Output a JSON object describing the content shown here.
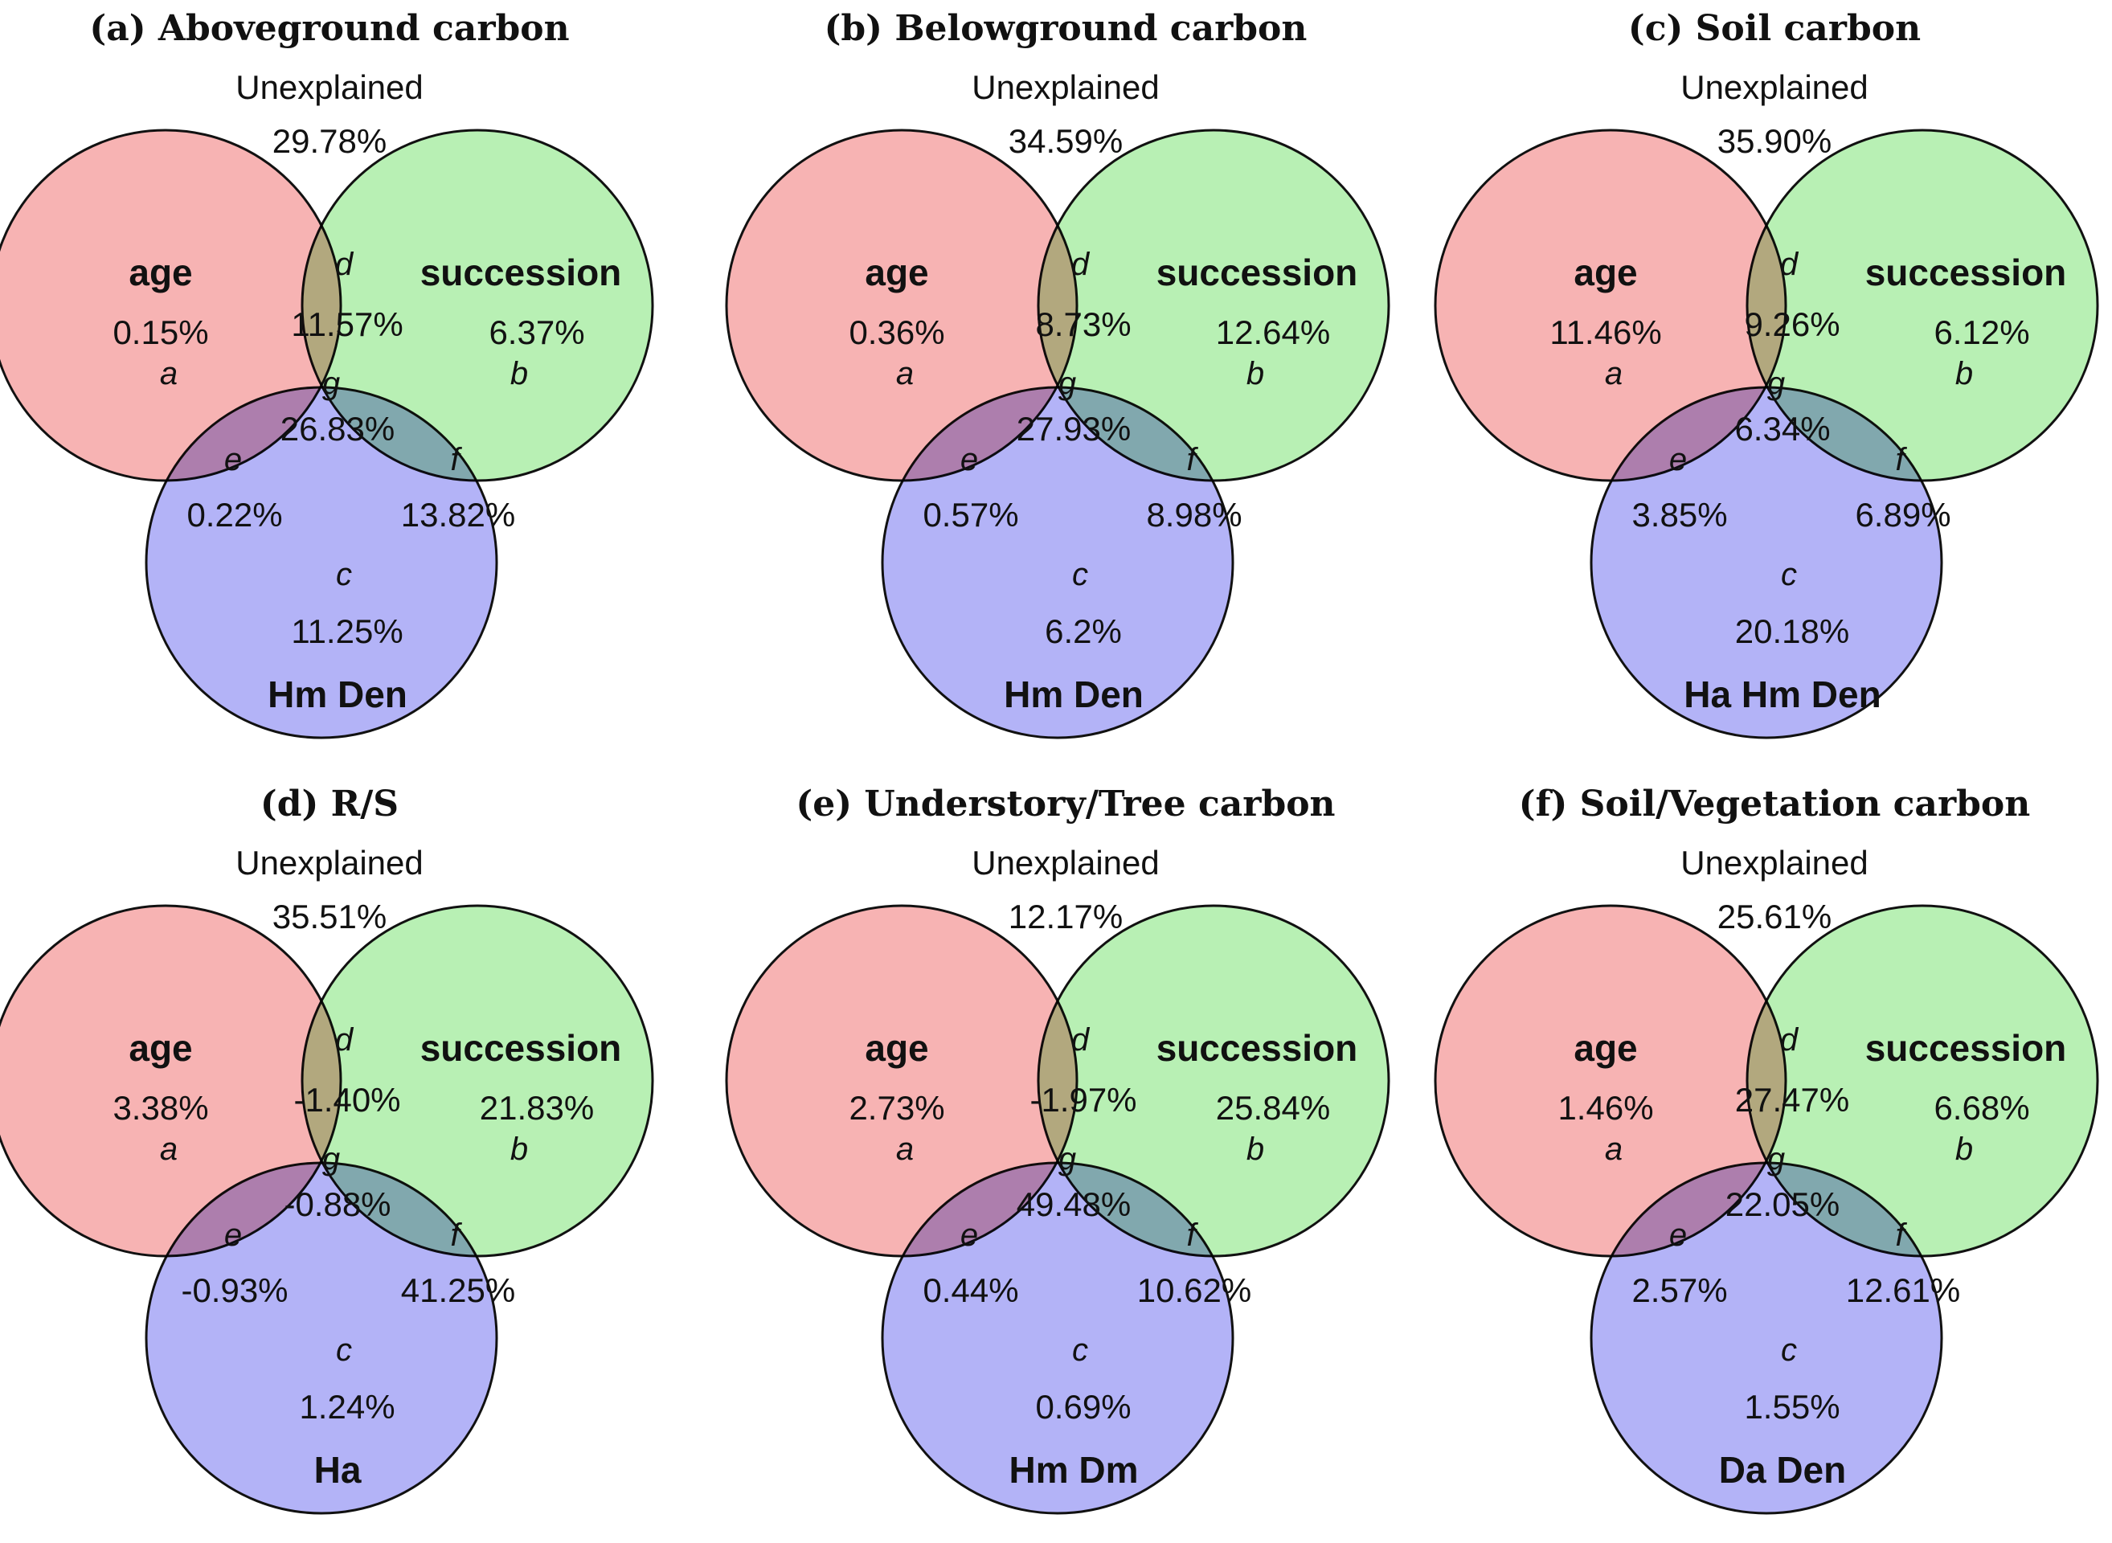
{
  "colors": {
    "age": "#f7b3b3",
    "succession": "#b8f0b4",
    "predictor": "#b3b3f7",
    "outline": "#111111"
  },
  "chart_data": [
    {
      "type": "venn",
      "title": "(a) Aboveground carbon",
      "unexplained_label": "Unexplained",
      "unexplained": "29.78%",
      "sets": [
        "age",
        "succession",
        "Hm Den"
      ],
      "regions": {
        "a": "0.15%",
        "b": "6.37%",
        "c": "11.25%",
        "d": "11.57%",
        "e": "0.22%",
        "f": "13.82%",
        "g": "26.83%"
      }
    },
    {
      "type": "venn",
      "title": "(b) Belowground carbon",
      "unexplained_label": "Unexplained",
      "unexplained": "34.59%",
      "sets": [
        "age",
        "succession",
        "Hm Den"
      ],
      "regions": {
        "a": "0.36%",
        "b": "12.64%",
        "c": "6.2%",
        "d": "8.73%",
        "e": "0.57%",
        "f": "8.98%",
        "g": "27.93%"
      }
    },
    {
      "type": "venn",
      "title": "(c) Soil carbon",
      "unexplained_label": "Unexplained",
      "unexplained": "35.90%",
      "sets": [
        "age",
        "succession",
        "Ha   Hm   Den"
      ],
      "regions": {
        "a": "11.46%",
        "b": "6.12%",
        "c": "20.18%",
        "d": "9.26%",
        "e": "3.85%",
        "f": "6.89%",
        "g": "6.34%"
      }
    },
    {
      "type": "venn",
      "title": "(d) R/S",
      "unexplained_label": "Unexplained",
      "unexplained": "35.51%",
      "sets": [
        "age",
        "succession",
        "Ha"
      ],
      "regions": {
        "a": "3.38%",
        "b": "21.83%",
        "c": "1.24%",
        "d": "-1.40%",
        "e": "-0.93%",
        "f": "41.25%",
        "g": "-0.88%"
      }
    },
    {
      "type": "venn",
      "title": "(e) Understory/Tree carbon",
      "unexplained_label": "Unexplained",
      "unexplained": "12.17%",
      "sets": [
        "age",
        "succession",
        "Hm  Dm"
      ],
      "regions": {
        "a": "2.73%",
        "b": "25.84%",
        "c": "0.69%",
        "d": "-1.97%",
        "e": "0.44%",
        "f": "10.62%",
        "g": "49.48%"
      }
    },
    {
      "type": "venn",
      "title": "(f) Soil/Vegetation carbon",
      "unexplained_label": "Unexplained",
      "unexplained": "25.61%",
      "sets": [
        "age",
        "succession",
        "Da  Den"
      ],
      "regions": {
        "a": "1.46%",
        "b": "6.68%",
        "c": "1.55%",
        "d": "27.47%",
        "e": "2.57%",
        "f": "12.61%",
        "g": "22.05%"
      }
    }
  ]
}
